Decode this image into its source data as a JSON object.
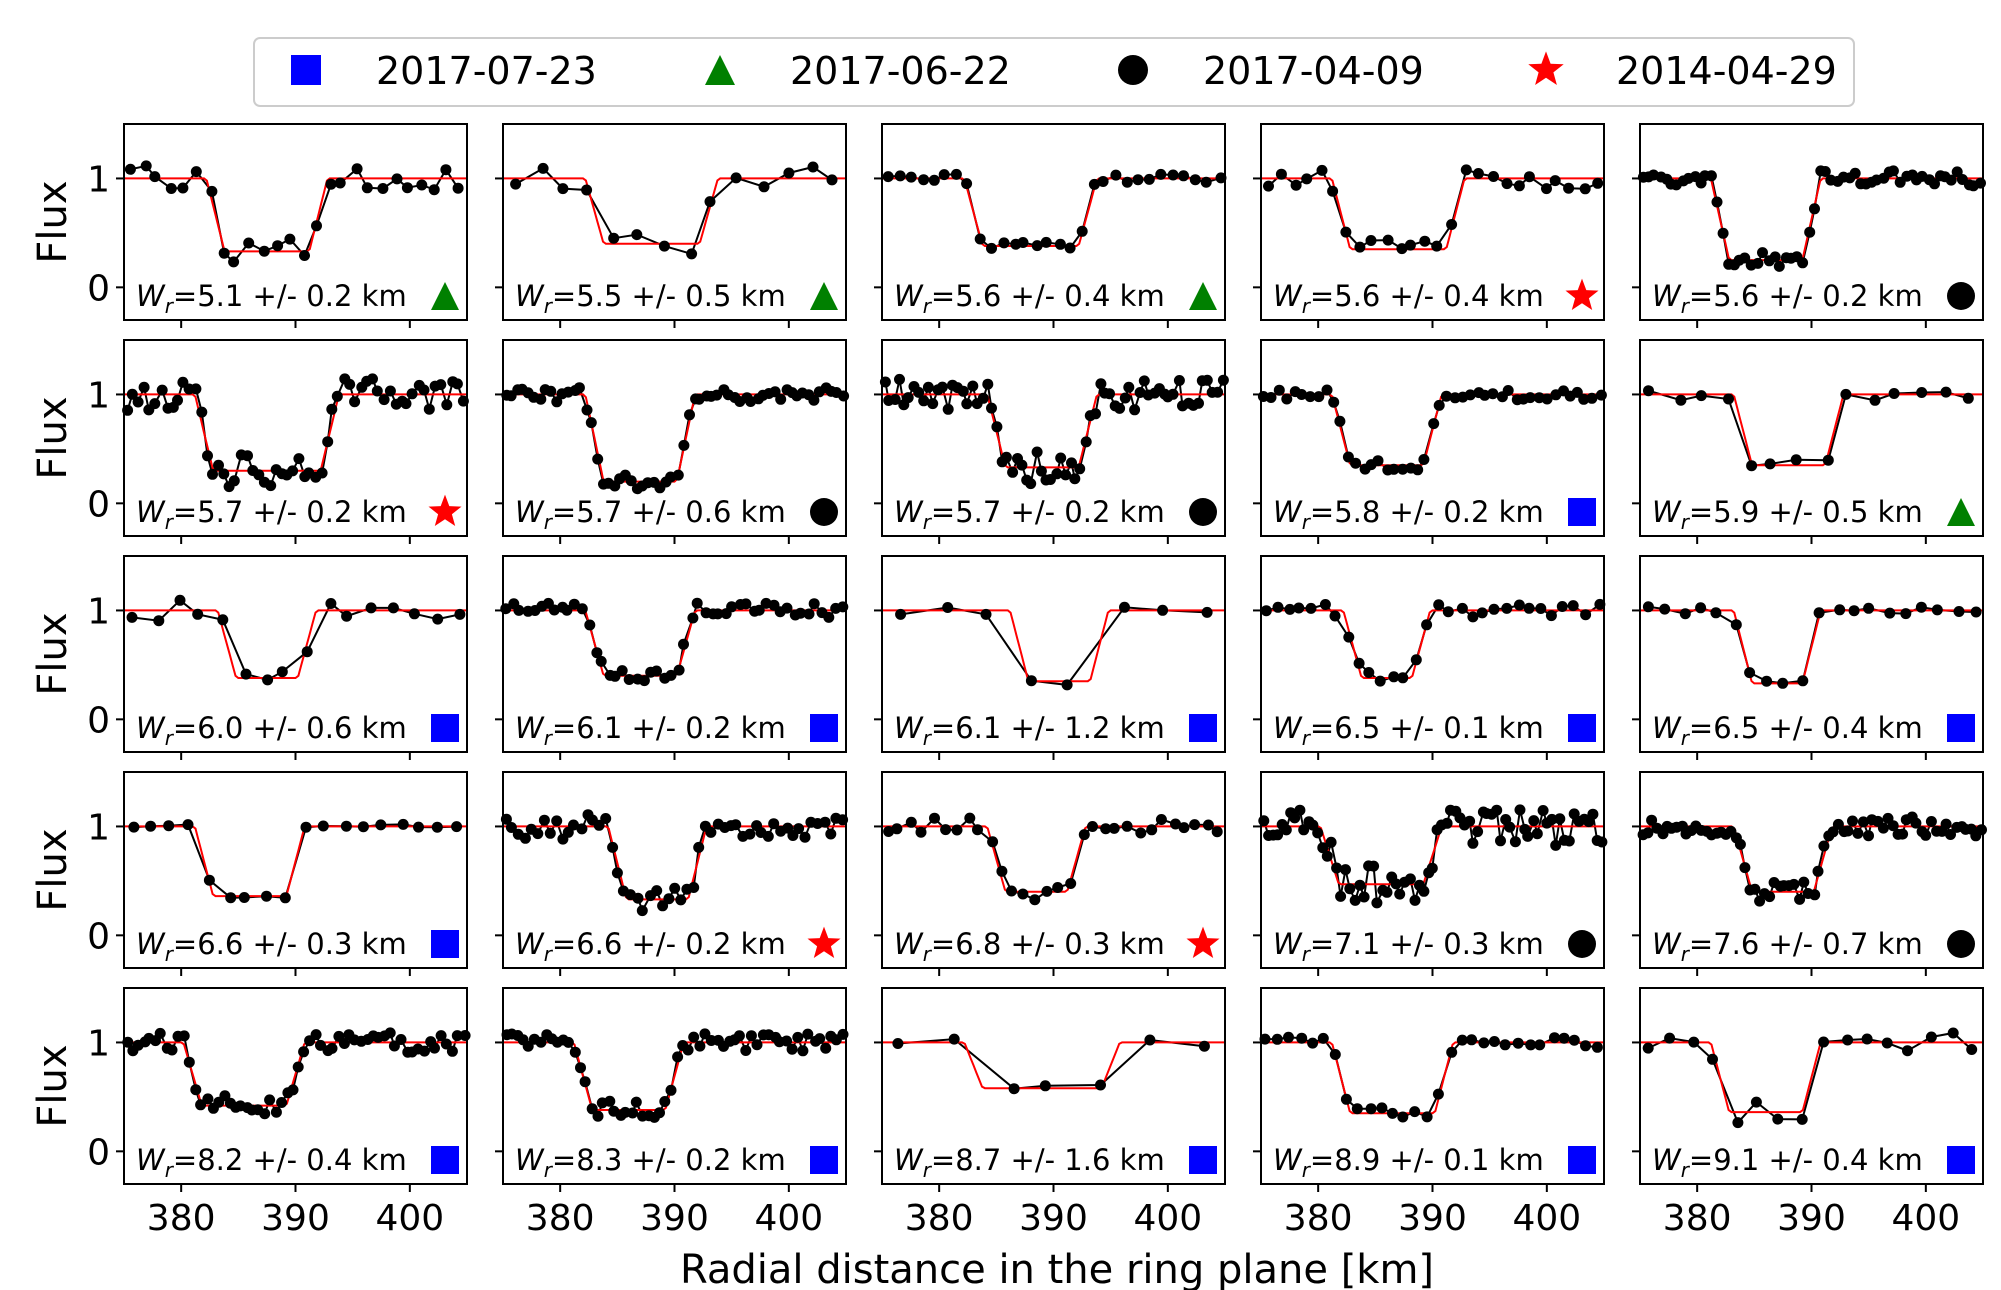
{
  "figure": {
    "xlabel": "Radial distance in the ring plane [km]",
    "ylabel": "Flux"
  },
  "legend": {
    "entries": [
      {
        "label": "2017-07-23",
        "marker": "square",
        "color": "#0000ff"
      },
      {
        "label": "2017-06-22",
        "marker": "triangle",
        "color": "#008000"
      },
      {
        "label": "2017-04-09",
        "marker": "circle",
        "color": "#000000"
      },
      {
        "label": "2014-04-29",
        "marker": "star",
        "color": "#ff0000"
      }
    ],
    "placement": "top-center"
  },
  "chart_data": {
    "type": "line",
    "layout": "5x5 small multiples",
    "xlim": [
      375,
      405
    ],
    "ylim": [
      -0.3,
      1.5
    ],
    "xticks": [
      380,
      390,
      400
    ],
    "yticks": [
      0,
      1
    ],
    "series_colors": {
      "data": "#000000",
      "model": "#ff0000"
    },
    "panels": [
      {
        "label": "=5.1 +/- 0.2 km",
        "date": "2017-06-22",
        "n": 26,
        "in": 383,
        "out": 392,
        "depth": 0.33,
        "sigma": 0.12,
        "seed": 1
      },
      {
        "label": "=5.5 +/- 0.5 km",
        "date": "2017-06-22",
        "n": 14,
        "in": 383,
        "out": 393,
        "depth": 0.4,
        "sigma": 0.12,
        "seed": 2
      },
      {
        "label": "=5.6 +/- 0.4 km",
        "date": "2017-06-22",
        "n": 30,
        "in": 383,
        "out": 393,
        "depth": 0.38,
        "sigma": 0.04,
        "seed": 3
      },
      {
        "label": "=5.6 +/- 0.4 km",
        "date": "2014-04-29",
        "n": 26,
        "in": 382,
        "out": 392,
        "depth": 0.35,
        "sigma": 0.1,
        "seed": 4
      },
      {
        "label": "=5.6 +/- 0.2 km",
        "date": "2017-04-09",
        "n": 60,
        "in": 382,
        "out": 390,
        "depth": 0.25,
        "sigma": 0.07,
        "seed": 5
      },
      {
        "label": "=5.7 +/- 0.2 km",
        "date": "2014-04-29",
        "n": 60,
        "in": 382,
        "out": 393,
        "depth": 0.3,
        "sigma": 0.15,
        "seed": 6
      },
      {
        "label": "=5.7 +/- 0.6 km",
        "date": "2017-04-09",
        "n": 60,
        "in": 383,
        "out": 391,
        "depth": 0.2,
        "sigma": 0.07,
        "seed": 7
      },
      {
        "label": "=5.7 +/- 0.2 km",
        "date": "2017-04-09",
        "n": 70,
        "in": 385,
        "out": 393,
        "depth": 0.33,
        "sigma": 0.15,
        "seed": 8
      },
      {
        "label": "=5.8 +/- 0.2 km",
        "date": "2017-07-23",
        "n": 45,
        "in": 382,
        "out": 390,
        "depth": 0.35,
        "sigma": 0.05,
        "seed": 9
      },
      {
        "label": "=5.9 +/- 0.5 km",
        "date": "2017-06-22",
        "n": 14,
        "in": 384,
        "out": 392,
        "depth": 0.35,
        "sigma": 0.07,
        "seed": 10
      },
      {
        "label": "=6.0 +/- 0.6 km",
        "date": "2017-07-23",
        "n": 16,
        "in": 384,
        "out": 391,
        "depth": 0.38,
        "sigma": 0.1,
        "seed": 11
      },
      {
        "label": "=6.1 +/- 0.2 km",
        "date": "2017-07-23",
        "n": 50,
        "in": 383,
        "out": 391,
        "depth": 0.4,
        "sigma": 0.07,
        "seed": 12
      },
      {
        "label": "=6.1 +/- 1.2 km",
        "date": "2017-07-23",
        "n": 8,
        "in": 387,
        "out": 394,
        "depth": 0.35,
        "sigma": 0.04,
        "seed": 13
      },
      {
        "label": "=6.5 +/- 0.1 km",
        "date": "2017-07-23",
        "n": 30,
        "in": 383,
        "out": 389,
        "depth": 0.38,
        "sigma": 0.06,
        "seed": 14
      },
      {
        "label": "=6.5 +/- 0.4 km",
        "date": "2017-07-23",
        "n": 20,
        "in": 384,
        "out": 390,
        "depth": 0.33,
        "sigma": 0.04,
        "seed": 15
      },
      {
        "label": "=6.6 +/- 0.3 km",
        "date": "2017-07-23",
        "n": 18,
        "in": 382,
        "out": 390,
        "depth": 0.36,
        "sigma": 0.02,
        "seed": 16
      },
      {
        "label": "=6.6 +/- 0.2 km",
        "date": "2014-04-29",
        "n": 55,
        "in": 385,
        "out": 392,
        "depth": 0.33,
        "sigma": 0.12,
        "seed": 17
      },
      {
        "label": "=6.8 +/- 0.3 km",
        "date": "2014-04-29",
        "n": 30,
        "in": 385,
        "out": 392,
        "depth": 0.4,
        "sigma": 0.08,
        "seed": 18
      },
      {
        "label": "=7.1 +/- 0.3 km",
        "date": "2017-04-09",
        "n": 75,
        "in": 381,
        "out": 390,
        "depth": 0.47,
        "sigma": 0.18,
        "seed": 19
      },
      {
        "label": "=7.6 +/- 0.7 km",
        "date": "2017-04-09",
        "n": 70,
        "in": 384,
        "out": 391,
        "depth": 0.4,
        "sigma": 0.09,
        "seed": 20
      },
      {
        "label": "=8.2 +/- 0.4 km",
        "date": "2017-07-23",
        "n": 60,
        "in": 381,
        "out": 390,
        "depth": 0.42,
        "sigma": 0.09,
        "seed": 21
      },
      {
        "label": "=8.3 +/- 0.2 km",
        "date": "2017-07-23",
        "n": 60,
        "in": 382,
        "out": 390,
        "depth": 0.38,
        "sigma": 0.08,
        "seed": 22
      },
      {
        "label": "=8.7 +/- 1.6 km",
        "date": "2017-07-23",
        "n": 7,
        "in": 383,
        "out": 395,
        "depth": 0.58,
        "sigma": 0.04,
        "seed": 23
      },
      {
        "label": "=8.9 +/- 0.1 km",
        "date": "2017-07-23",
        "n": 30,
        "in": 382,
        "out": 391,
        "depth": 0.35,
        "sigma": 0.05,
        "seed": 24
      },
      {
        "label": "=9.1 +/- 0.4 km",
        "date": "2017-07-23",
        "n": 16,
        "in": 382,
        "out": 390,
        "depth": 0.36,
        "sigma": 0.1,
        "seed": 25
      }
    ]
  }
}
